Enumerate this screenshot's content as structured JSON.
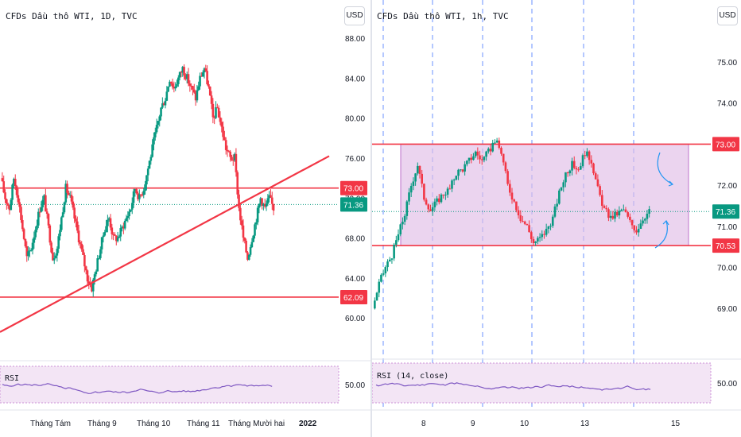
{
  "left_chart": {
    "title": "CFDs Dầu thô WTI, 1D, TVC",
    "currency": "USD",
    "y_ticks": [
      "88.00",
      "84.00",
      "80.00",
      "76.00",
      "72.00",
      "68.00",
      "64.00",
      "60.00"
    ],
    "y_tick_values": [
      88,
      84,
      80,
      76,
      72,
      68,
      64,
      60
    ],
    "x_labels": [
      "Tháng Tám",
      "Tháng 9",
      "Tháng 10",
      "Tháng 11",
      "Tháng Mười hai",
      "2022"
    ],
    "price_tags": [
      {
        "text": "73.00",
        "value": 73.0,
        "color": "#f23645"
      },
      {
        "text": "71.36",
        "value": 71.36,
        "color": "#089981"
      },
      {
        "text": "62.09",
        "value": 62.09,
        "color": "#f23645"
      }
    ],
    "rsi_label": "RSI",
    "rsi_tick": "50.00",
    "colors": {
      "up": "#089981",
      "down": "#f23645",
      "line": "#f23645",
      "rsi": "#7e57c2",
      "rsi_bg": "#f3e5f5"
    }
  },
  "right_chart": {
    "title": "CFDs Dầu thô WTI, 1h, TVC",
    "currency": "USD",
    "y_ticks": [
      "75.00",
      "74.00",
      "73.00",
      "72.00",
      "71.00",
      "70.00",
      "69.00"
    ],
    "y_tick_values": [
      75,
      74,
      73,
      72,
      71,
      70,
      69
    ],
    "x_labels": [
      "8",
      "9",
      "10",
      "13",
      "15"
    ],
    "price_tags": [
      {
        "text": "73.00",
        "value": 73.0,
        "color": "#f23645"
      },
      {
        "text": "71.36",
        "value": 71.36,
        "color": "#089981"
      },
      {
        "text": "70.53",
        "value": 70.53,
        "color": "#f23645"
      }
    ],
    "rsi_label": "RSI (14, close)",
    "rsi_tick": "50.00",
    "colors": {
      "box": "#e1bee7",
      "box_border": "#9c27b0",
      "vline": "#2962ff",
      "arrow": "#2196f3"
    }
  },
  "chart_data": [
    {
      "type": "candlestick",
      "title": "CFDs Dầu thô WTI, 1D, TVC",
      "ylim": [
        57.5,
        90
      ],
      "horizontal_levels": [
        73.0,
        62.09
      ],
      "last_price": 71.36,
      "x": [
        "Tháng Tám",
        "Tháng 9",
        "Tháng 10",
        "Tháng 11",
        "Tháng Mười hai",
        "2022"
      ],
      "close_path": [
        74,
        72,
        71,
        74,
        72,
        69,
        66,
        67,
        69,
        71,
        72,
        69,
        66,
        67,
        70,
        73,
        72,
        70,
        68,
        66,
        64,
        63,
        65,
        67,
        69,
        70,
        68,
        68,
        69,
        70,
        71,
        73,
        72,
        73,
        75,
        77,
        79,
        81,
        82,
        84,
        83,
        84,
        85,
        84,
        83,
        82,
        84,
        85,
        83,
        80,
        81,
        79,
        77,
        76,
        76,
        71,
        68,
        66,
        68,
        70,
        72,
        71,
        72,
        71
      ]
    },
    {
      "type": "candlestick",
      "title": "CFDs Dầu thô WTI, 1h, TVC",
      "ylim": [
        68.2,
        75.7
      ],
      "range_box": [
        70.53,
        73.0
      ],
      "last_price": 71.36,
      "x": [
        "8",
        "9",
        "10",
        "13",
        "15"
      ],
      "close_path": [
        69.0,
        69.6,
        70.0,
        70.3,
        70.8,
        71.3,
        72.0,
        72.5,
        71.7,
        71.4,
        71.6,
        71.8,
        71.9,
        72.3,
        72.4,
        72.6,
        72.8,
        72.6,
        72.8,
        73.1,
        72.8,
        72.0,
        71.6,
        71.2,
        71.0,
        70.6,
        70.7,
        70.9,
        71.2,
        71.8,
        72.3,
        72.5,
        72.4,
        72.8,
        72.6,
        71.9,
        71.4,
        71.2,
        71.3,
        71.4,
        71.1,
        70.9,
        71.2,
        71.36
      ]
    }
  ]
}
